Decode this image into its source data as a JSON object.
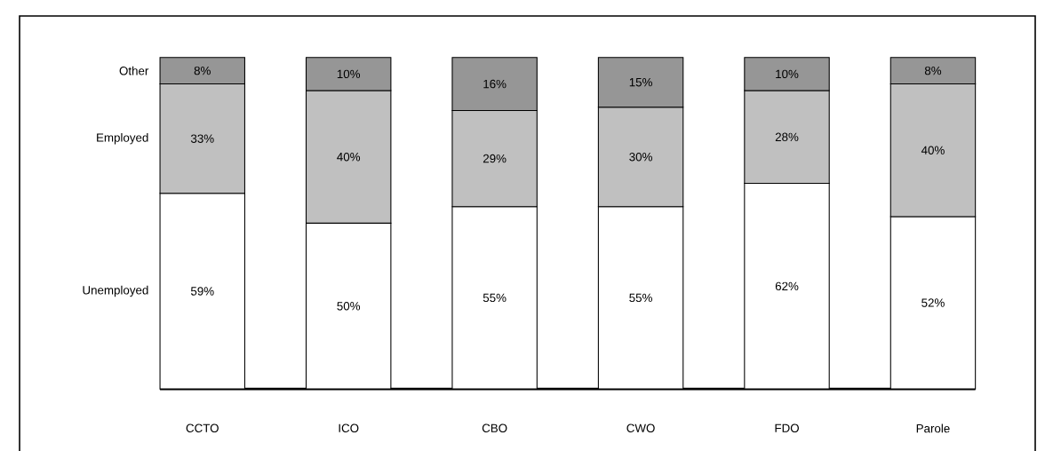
{
  "chart_data": {
    "type": "bar",
    "stacked": true,
    "categories": [
      "CCTO",
      "ICO",
      "CBO",
      "CWO",
      "FDO",
      "Parole"
    ],
    "ylim": [
      0,
      100
    ],
    "series": [
      {
        "name": "Unemployed",
        "color": "#ffffff",
        "values": [
          59,
          50,
          55,
          55,
          62,
          52
        ],
        "value_labels": [
          "59%",
          "50%",
          "55%",
          "55%",
          "62%",
          "52%"
        ]
      },
      {
        "name": "Employed",
        "color": "#c0c0c0",
        "values": [
          33,
          40,
          29,
          30,
          28,
          40
        ],
        "value_labels": [
          "33%",
          "40%",
          "29%",
          "30%",
          "28%",
          "40%"
        ]
      },
      {
        "name": "Other",
        "color": "#969696",
        "values": [
          8,
          10,
          16,
          15,
          10,
          8
        ],
        "value_labels": [
          "8%",
          "10%",
          "16%",
          "15%",
          "10%",
          "8%"
        ]
      }
    ]
  }
}
